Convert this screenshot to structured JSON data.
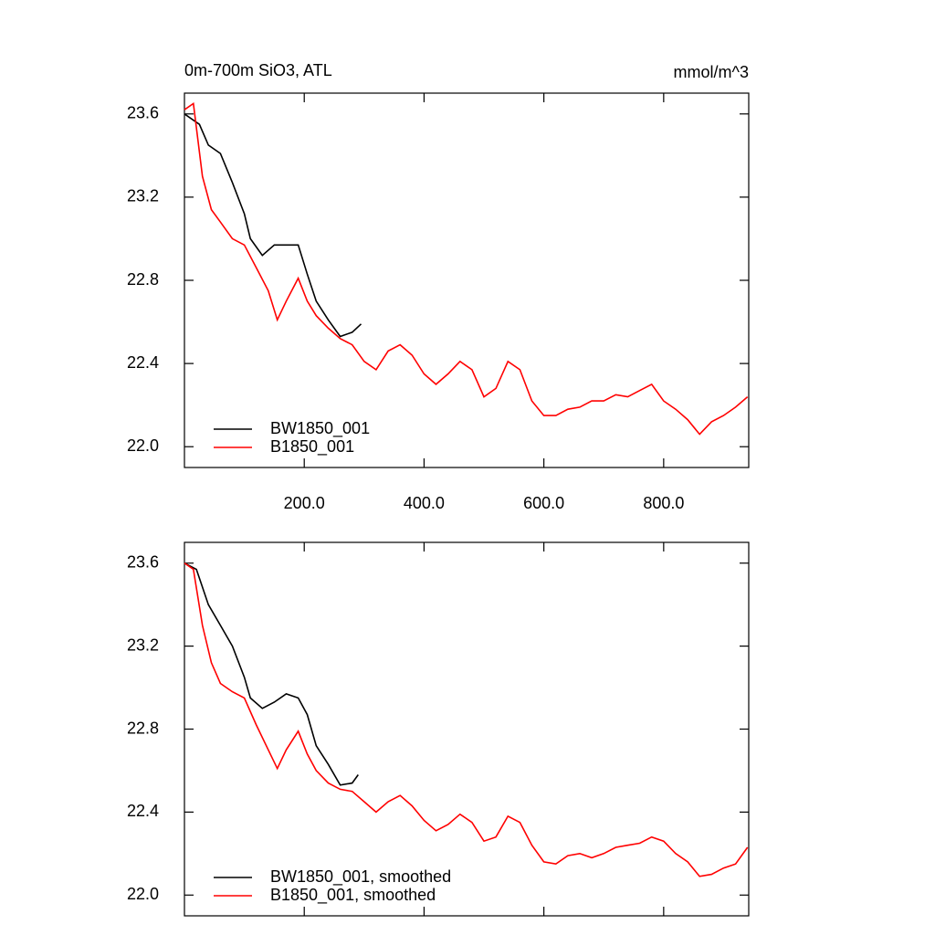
{
  "chart_data": [
    {
      "type": "line",
      "title": "0m-700m SiO3, ATL",
      "units": "mmol/m^3",
      "xlim": [
        0,
        942
      ],
      "ylim": [
        21.9,
        23.7
      ],
      "xticks": [
        {
          "value": 200,
          "label": "200.0"
        },
        {
          "value": 400,
          "label": "400.0"
        },
        {
          "value": 600,
          "label": "600.0"
        },
        {
          "value": 800,
          "label": "800.0"
        }
      ],
      "yticks": [
        {
          "value": 22,
          "label": "22.0"
        },
        22.4,
        22.8,
        23.2,
        23.6
      ],
      "show_xtick_labels": true,
      "legend": "lower left",
      "series": [
        {
          "name": "BW1850_001",
          "color": "#000000",
          "x": [
            0,
            25,
            40,
            60,
            80,
            100,
            110,
            130,
            150,
            170,
            190,
            205,
            220,
            240,
            260,
            280,
            295
          ],
          "values": [
            23.6,
            23.55,
            23.45,
            23.41,
            23.27,
            23.12,
            23.0,
            22.92,
            22.97,
            22.97,
            22.97,
            22.83,
            22.7,
            22.61,
            22.53,
            22.55,
            22.59
          ]
        },
        {
          "name": "B1850_001",
          "color": "#ff0000",
          "x": [
            0,
            15,
            30,
            45,
            60,
            80,
            100,
            120,
            140,
            155,
            170,
            190,
            205,
            220,
            240,
            260,
            280,
            300,
            320,
            340,
            360,
            380,
            400,
            420,
            440,
            460,
            480,
            500,
            520,
            540,
            560,
            580,
            600,
            620,
            640,
            660,
            680,
            700,
            720,
            740,
            760,
            780,
            800,
            820,
            840,
            860,
            880,
            900,
            920,
            940
          ],
          "values": [
            23.62,
            23.65,
            23.3,
            23.14,
            23.08,
            23.0,
            22.97,
            22.86,
            22.75,
            22.61,
            22.7,
            22.81,
            22.7,
            22.63,
            22.57,
            22.52,
            22.49,
            22.41,
            22.37,
            22.46,
            22.49,
            22.44,
            22.35,
            22.3,
            22.35,
            22.41,
            22.37,
            22.24,
            22.28,
            22.41,
            22.37,
            22.22,
            22.15,
            22.15,
            22.18,
            22.19,
            22.22,
            22.22,
            22.25,
            22.24,
            22.27,
            22.3,
            22.22,
            22.18,
            22.13,
            22.06,
            22.12,
            22.15,
            22.19,
            22.24
          ]
        }
      ]
    },
    {
      "type": "line",
      "xlim": [
        0,
        942
      ],
      "ylim": [
        21.9,
        23.7
      ],
      "xticks": [
        200,
        400,
        600,
        800
      ],
      "yticks": [
        {
          "value": 22,
          "label": "22.0"
        },
        22.4,
        22.8,
        23.2,
        23.6
      ],
      "show_xtick_labels": false,
      "legend": "lower left",
      "series": [
        {
          "name": "BW1850_001, smoothed",
          "color": "#000000",
          "x": [
            0,
            20,
            40,
            60,
            80,
            100,
            110,
            130,
            150,
            170,
            190,
            205,
            220,
            240,
            260,
            280,
            290
          ],
          "values": [
            23.6,
            23.57,
            23.4,
            23.3,
            23.2,
            23.05,
            22.95,
            22.9,
            22.93,
            22.97,
            22.95,
            22.87,
            22.72,
            22.63,
            22.53,
            22.54,
            22.58
          ]
        },
        {
          "name": "B1850_001, smoothed",
          "color": "#ff0000",
          "x": [
            0,
            15,
            30,
            45,
            60,
            80,
            100,
            120,
            140,
            155,
            170,
            190,
            205,
            220,
            240,
            260,
            280,
            300,
            320,
            340,
            360,
            380,
            400,
            420,
            440,
            460,
            480,
            500,
            520,
            540,
            560,
            580,
            600,
            620,
            640,
            660,
            680,
            700,
            720,
            740,
            760,
            780,
            800,
            820,
            840,
            860,
            880,
            900,
            920,
            940
          ],
          "values": [
            23.6,
            23.57,
            23.3,
            23.12,
            23.02,
            22.98,
            22.95,
            22.82,
            22.7,
            22.61,
            22.7,
            22.79,
            22.68,
            22.6,
            22.54,
            22.51,
            22.5,
            22.45,
            22.4,
            22.45,
            22.48,
            22.43,
            22.36,
            22.31,
            22.34,
            22.39,
            22.35,
            22.26,
            22.28,
            22.38,
            22.35,
            22.24,
            22.16,
            22.15,
            22.19,
            22.2,
            22.18,
            22.2,
            22.23,
            22.24,
            22.25,
            22.28,
            22.26,
            22.2,
            22.16,
            22.09,
            22.1,
            22.13,
            22.15,
            22.23
          ]
        }
      ]
    }
  ]
}
